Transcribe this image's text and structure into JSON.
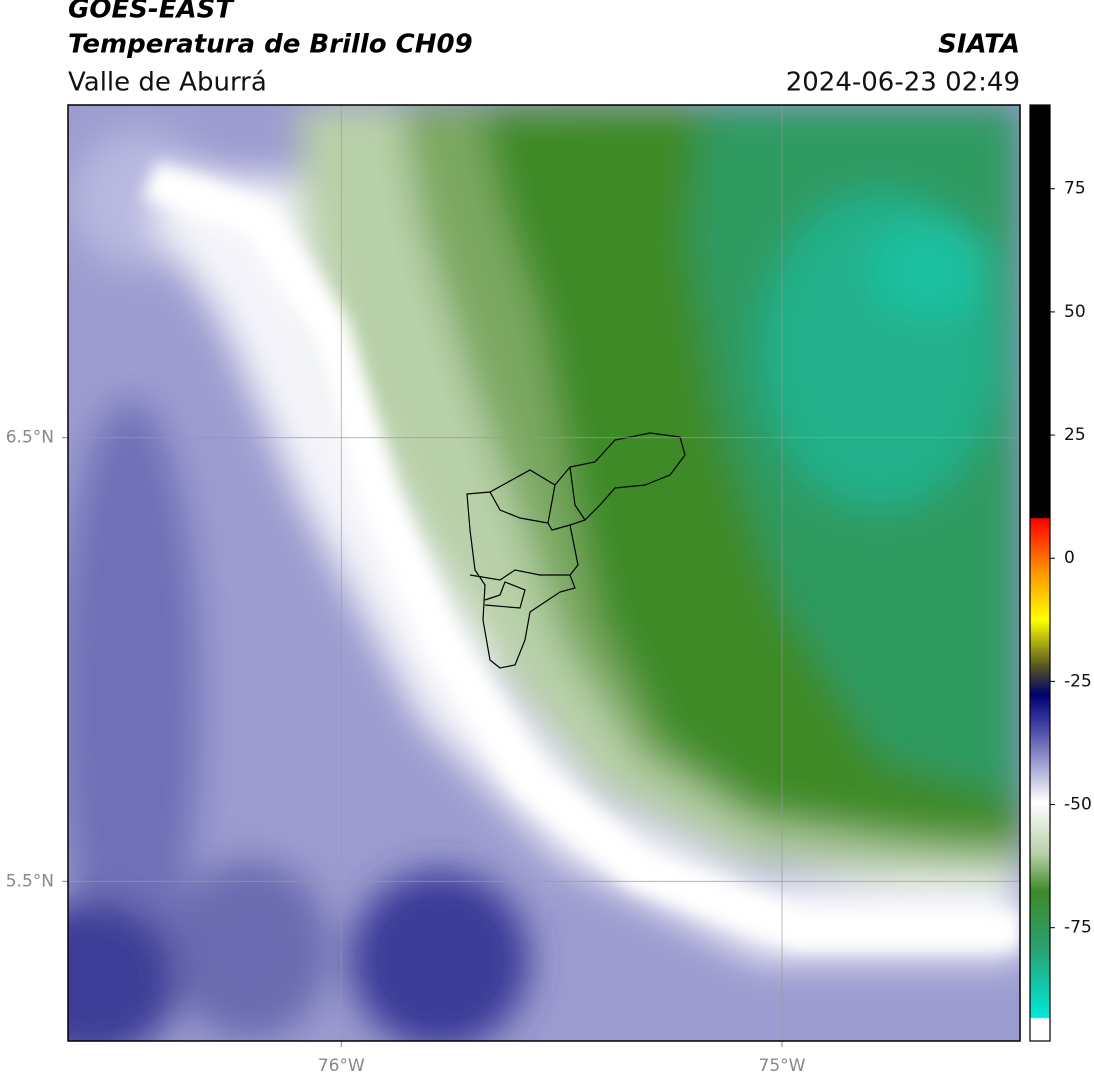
{
  "header": {
    "title": "GOES-EAST",
    "subtitle": "Temperatura de Brillo CH09",
    "region": "Valle de Aburrá",
    "source": "SIATA",
    "timestamp": "2024-06-23 02:49"
  },
  "map": {
    "lon_lim": [
      -76.62,
      -74.46
    ],
    "lat_lim": [
      5.14,
      7.25
    ],
    "lon_ticks": [
      {
        "value": -76,
        "label": "76°W"
      },
      {
        "value": -75,
        "label": "75°W"
      }
    ],
    "lat_ticks": [
      {
        "value": 6.5,
        "label": "6.5°N"
      },
      {
        "value": 5.5,
        "label": "5.5°N"
      }
    ]
  },
  "colorbar": {
    "lim": [
      -98,
      92
    ],
    "ticks": [
      75,
      50,
      25,
      0,
      -25,
      -50,
      -75
    ]
  }
}
